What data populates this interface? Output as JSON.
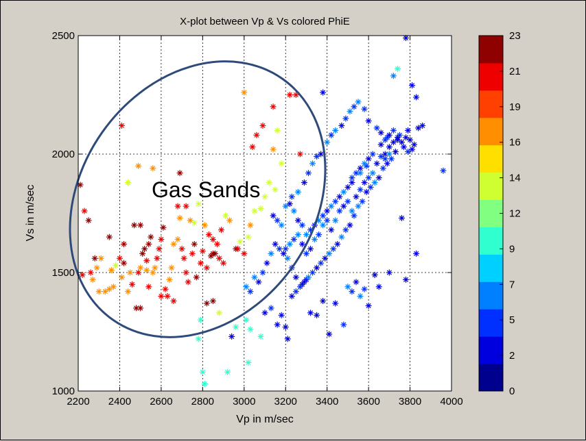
{
  "chart_data": {
    "type": "scatter",
    "title": "X-plot between Vp & Vs colored PhiE",
    "xlabel": "Vp in m/sec",
    "ylabel": "Vs in m/sec",
    "xlim": [
      2200,
      4000
    ],
    "ylim": [
      1000,
      2500
    ],
    "xticks": [
      "2200",
      "2400",
      "2600",
      "2800",
      "3000",
      "3200",
      "3400",
      "3600",
      "3800",
      "4000"
    ],
    "yticks": [
      "1000",
      "1500",
      "2000",
      "2500"
    ],
    "grid": true,
    "marker": "asterisk",
    "annotation": "Gas Sands",
    "ellipse_color": "#2e4a7a",
    "colorbar": {
      "range": [
        0,
        23
      ],
      "tick_labels": [
        "0",
        "2",
        "5",
        "7",
        "9",
        "12",
        "14",
        "16",
        "19",
        "21",
        "23"
      ],
      "colors": [
        "#00008f",
        "#0000df",
        "#0030ff",
        "#0080ff",
        "#00d0ff",
        "#30ffcf",
        "#80ff80",
        "#cfff30",
        "#ffdf00",
        "#ff8f00",
        "#ff4000",
        "#ef0000",
        "#8f0000"
      ]
    },
    "points": [
      [
        2210,
        1870,
        22
      ],
      [
        2230,
        1760,
        20
      ],
      [
        2250,
        1720,
        22
      ],
      [
        2220,
        1490,
        21
      ],
      [
        2260,
        1500,
        21
      ],
      [
        2270,
        1470,
        16
      ],
      [
        2300,
        1420,
        16
      ],
      [
        2280,
        1560,
        22
      ],
      [
        2330,
        1420,
        16
      ],
      [
        2350,
        1430,
        16
      ],
      [
        2370,
        1440,
        16
      ],
      [
        2380,
        1530,
        14
      ],
      [
        2360,
        1510,
        16
      ],
      [
        2400,
        1560,
        21
      ],
      [
        2420,
        1540,
        22
      ],
      [
        2410,
        1480,
        16
      ],
      [
        2440,
        1420,
        16
      ],
      [
        2460,
        1450,
        21
      ],
      [
        2480,
        1350,
        22
      ],
      [
        2500,
        1350,
        22
      ],
      [
        2490,
        1500,
        21
      ],
      [
        2510,
        1580,
        22
      ],
      [
        2520,
        1600,
        22
      ],
      [
        2530,
        1550,
        21
      ],
      [
        2540,
        1620,
        22
      ],
      [
        2550,
        1650,
        22
      ],
      [
        2470,
        1700,
        22
      ],
      [
        2500,
        1700,
        22
      ],
      [
        2560,
        1500,
        16
      ],
      [
        2570,
        1520,
        16
      ],
      [
        2580,
        1560,
        20
      ],
      [
        2590,
        1600,
        20
      ],
      [
        2600,
        1640,
        20
      ],
      [
        2610,
        1690,
        22
      ],
      [
        2620,
        1430,
        21
      ],
      [
        2630,
        1400,
        21
      ],
      [
        2640,
        1470,
        16
      ],
      [
        2650,
        1520,
        16
      ],
      [
        2660,
        1620,
        16
      ],
      [
        2680,
        1640,
        16
      ],
      [
        2700,
        1600,
        20
      ],
      [
        2710,
        1560,
        20
      ],
      [
        2720,
        1500,
        21
      ],
      [
        2730,
        1460,
        21
      ],
      [
        2750,
        1580,
        21
      ],
      [
        2760,
        1620,
        22
      ],
      [
        2770,
        1480,
        22
      ],
      [
        2790,
        1540,
        21
      ],
      [
        2800,
        1590,
        21
      ],
      [
        2820,
        1520,
        21
      ],
      [
        2840,
        1570,
        22
      ],
      [
        2850,
        1580,
        22
      ],
      [
        2860,
        1580,
        23
      ],
      [
        2880,
        1560,
        21
      ],
      [
        2900,
        1540,
        21
      ],
      [
        2420,
        1620,
        22
      ],
      [
        2350,
        1650,
        22
      ],
      [
        2440,
        1880,
        14
      ],
      [
        2490,
        1950,
        16
      ],
      [
        2560,
        1940,
        16
      ],
      [
        2690,
        1920,
        23
      ],
      [
        2680,
        1780,
        21
      ],
      [
        2530,
        1510,
        16
      ],
      [
        2500,
        1520,
        16
      ],
      [
        2450,
        1500,
        16
      ],
      [
        2410,
        2120,
        21
      ],
      [
        2290,
        1520,
        16
      ],
      [
        2310,
        1560,
        16
      ],
      [
        2540,
        1440,
        21
      ],
      [
        2600,
        1400,
        21
      ],
      [
        2660,
        1380,
        21
      ],
      [
        2690,
        1730,
        16
      ],
      [
        2720,
        1780,
        20
      ],
      [
        2740,
        1720,
        16
      ],
      [
        2760,
        1710,
        14
      ],
      [
        2780,
        1790,
        14
      ],
      [
        2810,
        1700,
        16
      ],
      [
        2830,
        1660,
        20
      ],
      [
        2850,
        1640,
        20
      ],
      [
        2870,
        1620,
        21
      ],
      [
        2890,
        1680,
        20
      ],
      [
        2910,
        1740,
        14
      ],
      [
        2930,
        1720,
        16
      ],
      [
        2960,
        1600,
        23
      ],
      [
        3000,
        1580,
        21
      ],
      [
        3000,
        2260,
        16
      ],
      [
        3040,
        2030,
        21
      ],
      [
        3060,
        2080,
        20
      ],
      [
        3090,
        2120,
        20
      ],
      [
        3140,
        2200,
        21
      ],
      [
        3160,
        2100,
        14
      ],
      [
        3140,
        2020,
        16
      ],
      [
        3180,
        1960,
        14
      ],
      [
        3220,
        2250,
        21
      ],
      [
        3250,
        2250,
        20
      ],
      [
        3270,
        2000,
        20
      ],
      [
        3120,
        1880,
        14
      ],
      [
        3150,
        1850,
        14
      ],
      [
        3100,
        1820,
        14
      ],
      [
        3080,
        1770,
        14
      ],
      [
        3050,
        1760,
        14
      ],
      [
        3030,
        1700,
        16
      ],
      [
        3020,
        1650,
        14
      ],
      [
        2980,
        1630,
        14
      ],
      [
        2970,
        1600,
        20
      ],
      [
        2850,
        1380,
        23
      ],
      [
        2820,
        1370,
        23
      ],
      [
        2880,
        1330,
        14
      ],
      [
        2790,
        1300,
        9
      ],
      [
        2780,
        1220,
        9
      ],
      [
        2800,
        1080,
        9
      ],
      [
        2810,
        1030,
        9
      ],
      [
        2920,
        1080,
        9
      ],
      [
        2940,
        1230,
        2
      ],
      [
        2960,
        1270,
        9
      ],
      [
        3010,
        1300,
        9
      ],
      [
        3030,
        1260,
        9
      ],
      [
        3020,
        1120,
        9
      ],
      [
        3080,
        1230,
        9
      ],
      [
        3100,
        1330,
        2
      ],
      [
        3130,
        1350,
        5
      ],
      [
        3160,
        1280,
        2
      ],
      [
        3180,
        1320,
        2
      ],
      [
        3200,
        1270,
        2
      ],
      [
        3210,
        1220,
        2
      ],
      [
        3230,
        1400,
        2
      ],
      [
        3250,
        1420,
        5
      ],
      [
        3280,
        1450,
        2
      ],
      [
        3300,
        1470,
        2
      ],
      [
        3320,
        1330,
        2
      ],
      [
        3350,
        1320,
        2
      ],
      [
        3380,
        1380,
        2
      ],
      [
        3410,
        1240,
        2
      ],
      [
        3440,
        1370,
        2
      ],
      [
        3480,
        1280,
        5
      ],
      [
        3500,
        1440,
        7
      ],
      [
        3520,
        1420,
        5
      ],
      [
        3540,
        1460,
        2
      ],
      [
        3560,
        1400,
        7
      ],
      [
        3580,
        1430,
        5
      ],
      [
        3600,
        1360,
        2
      ],
      [
        3630,
        1490,
        2
      ],
      [
        3650,
        1440,
        2
      ],
      [
        3700,
        1500,
        2
      ],
      [
        3780,
        1470,
        2
      ],
      [
        3200,
        1600,
        5
      ],
      [
        3220,
        1620,
        7
      ],
      [
        3240,
        1640,
        5
      ],
      [
        3260,
        1660,
        7
      ],
      [
        3280,
        1620,
        2
      ],
      [
        3300,
        1580,
        5
      ],
      [
        3320,
        1600,
        2
      ],
      [
        3340,
        1640,
        7
      ],
      [
        3360,
        1660,
        5
      ],
      [
        3380,
        1700,
        7
      ],
      [
        3400,
        1720,
        5
      ],
      [
        3420,
        1680,
        2
      ],
      [
        3440,
        1720,
        7
      ],
      [
        3460,
        1760,
        5
      ],
      [
        3480,
        1780,
        2
      ],
      [
        3500,
        1800,
        5
      ],
      [
        3520,
        1760,
        7
      ],
      [
        3540,
        1820,
        2
      ],
      [
        3560,
        1850,
        5
      ],
      [
        3580,
        1880,
        2
      ],
      [
        3600,
        1900,
        5
      ],
      [
        3620,
        1920,
        7
      ],
      [
        3640,
        1960,
        2
      ],
      [
        3660,
        1990,
        5
      ],
      [
        3680,
        2000,
        2
      ],
      [
        3700,
        2030,
        2
      ],
      [
        3720,
        2050,
        2
      ],
      [
        3740,
        2060,
        2
      ],
      [
        3760,
        2050,
        2
      ],
      [
        3780,
        2070,
        2
      ],
      [
        3800,
        2060,
        2
      ],
      [
        3820,
        2040,
        2
      ],
      [
        3790,
        2100,
        2
      ],
      [
        3750,
        2080,
        5
      ],
      [
        3730,
        2010,
        2
      ],
      [
        3710,
        1980,
        5
      ],
      [
        3690,
        1960,
        2
      ],
      [
        3670,
        1940,
        5
      ],
      [
        3650,
        1900,
        2
      ],
      [
        3630,
        1880,
        7
      ],
      [
        3610,
        1860,
        5
      ],
      [
        3590,
        1840,
        2
      ],
      [
        3570,
        1800,
        5
      ],
      [
        3550,
        1780,
        7
      ],
      [
        3530,
        1740,
        5
      ],
      [
        3510,
        1700,
        2
      ],
      [
        3490,
        1680,
        5
      ],
      [
        3470,
        1650,
        7
      ],
      [
        3450,
        1620,
        2
      ],
      [
        3430,
        1600,
        5
      ],
      [
        3410,
        1580,
        7
      ],
      [
        3390,
        1560,
        2
      ],
      [
        3370,
        1540,
        5
      ],
      [
        3350,
        1520,
        2
      ],
      [
        3330,
        1500,
        5
      ],
      [
        3310,
        1480,
        7
      ],
      [
        3290,
        1460,
        2
      ],
      [
        3270,
        1440,
        5
      ],
      [
        3250,
        1480,
        2
      ],
      [
        3230,
        1520,
        5
      ],
      [
        3210,
        1560,
        7
      ],
      [
        3190,
        1580,
        2
      ],
      [
        3170,
        1600,
        5
      ],
      [
        3150,
        1620,
        2
      ],
      [
        3130,
        1580,
        7
      ],
      [
        3110,
        1540,
        2
      ],
      [
        3090,
        1500,
        5
      ],
      [
        3070,
        1460,
        2
      ],
      [
        3050,
        1480,
        7
      ],
      [
        3030,
        1420,
        5
      ],
      [
        3010,
        1440,
        7
      ],
      [
        3180,
        1700,
        7
      ],
      [
        3160,
        1720,
        5
      ],
      [
        3140,
        1740,
        2
      ],
      [
        3200,
        1780,
        7
      ],
      [
        3230,
        1820,
        5
      ],
      [
        3260,
        1840,
        7
      ],
      [
        3290,
        1880,
        2
      ],
      [
        3310,
        1920,
        5
      ],
      [
        3330,
        1960,
        7
      ],
      [
        3350,
        1990,
        5
      ],
      [
        3370,
        2000,
        2
      ],
      [
        3400,
        2050,
        7
      ],
      [
        3420,
        2080,
        5
      ],
      [
        3440,
        2100,
        7
      ],
      [
        3470,
        2120,
        2
      ],
      [
        3490,
        2150,
        5
      ],
      [
        3510,
        2180,
        7
      ],
      [
        3530,
        2200,
        5
      ],
      [
        3550,
        2220,
        7
      ],
      [
        3580,
        2190,
        5
      ],
      [
        3600,
        2140,
        2
      ],
      [
        3640,
        2110,
        5
      ],
      [
        3660,
        2090,
        2
      ],
      [
        3690,
        2070,
        5
      ],
      [
        3720,
        2330,
        7
      ],
      [
        3740,
        2360,
        9
      ],
      [
        3780,
        2490,
        2
      ],
      [
        3810,
        2290,
        2
      ],
      [
        3830,
        2240,
        2
      ],
      [
        3840,
        2110,
        2
      ],
      [
        3860,
        2120,
        2
      ],
      [
        3960,
        1930,
        5
      ],
      [
        3830,
        1580,
        2
      ],
      [
        3760,
        1730,
        2
      ],
      [
        3380,
        2260,
        2
      ],
      [
        3590,
        1950,
        5
      ],
      [
        3560,
        1920,
        7
      ],
      [
        3520,
        1900,
        5
      ],
      [
        3500,
        1860,
        2
      ],
      [
        3480,
        1840,
        7
      ],
      [
        3460,
        1820,
        2
      ],
      [
        3440,
        1800,
        5
      ],
      [
        3420,
        1780,
        7
      ],
      [
        3400,
        1760,
        2
      ],
      [
        3380,
        1740,
        5
      ],
      [
        3360,
        1720,
        7
      ],
      [
        3340,
        1700,
        2
      ],
      [
        3320,
        1680,
        5
      ],
      [
        3300,
        1660,
        7
      ],
      [
        3280,
        1700,
        5
      ],
      [
        3260,
        1720,
        2
      ],
      [
        3240,
        1760,
        7
      ],
      [
        3220,
        1790,
        2
      ],
      [
        3620,
        2000,
        5
      ],
      [
        3600,
        1980,
        2
      ],
      [
        3580,
        1960,
        7
      ],
      [
        3560,
        1940,
        2
      ],
      [
        3540,
        1920,
        5
      ],
      [
        3520,
        1880,
        2
      ],
      [
        3660,
        2040,
        2
      ],
      [
        3680,
        2060,
        5
      ],
      [
        3700,
        2080,
        2
      ],
      [
        3720,
        2100,
        5
      ],
      [
        3740,
        2070,
        2
      ],
      [
        3770,
        2030,
        2
      ],
      [
        3790,
        2010,
        5
      ],
      [
        3810,
        2020,
        2
      ],
      [
        3700,
        2000,
        7
      ],
      [
        3680,
        1980,
        5
      ]
    ]
  }
}
